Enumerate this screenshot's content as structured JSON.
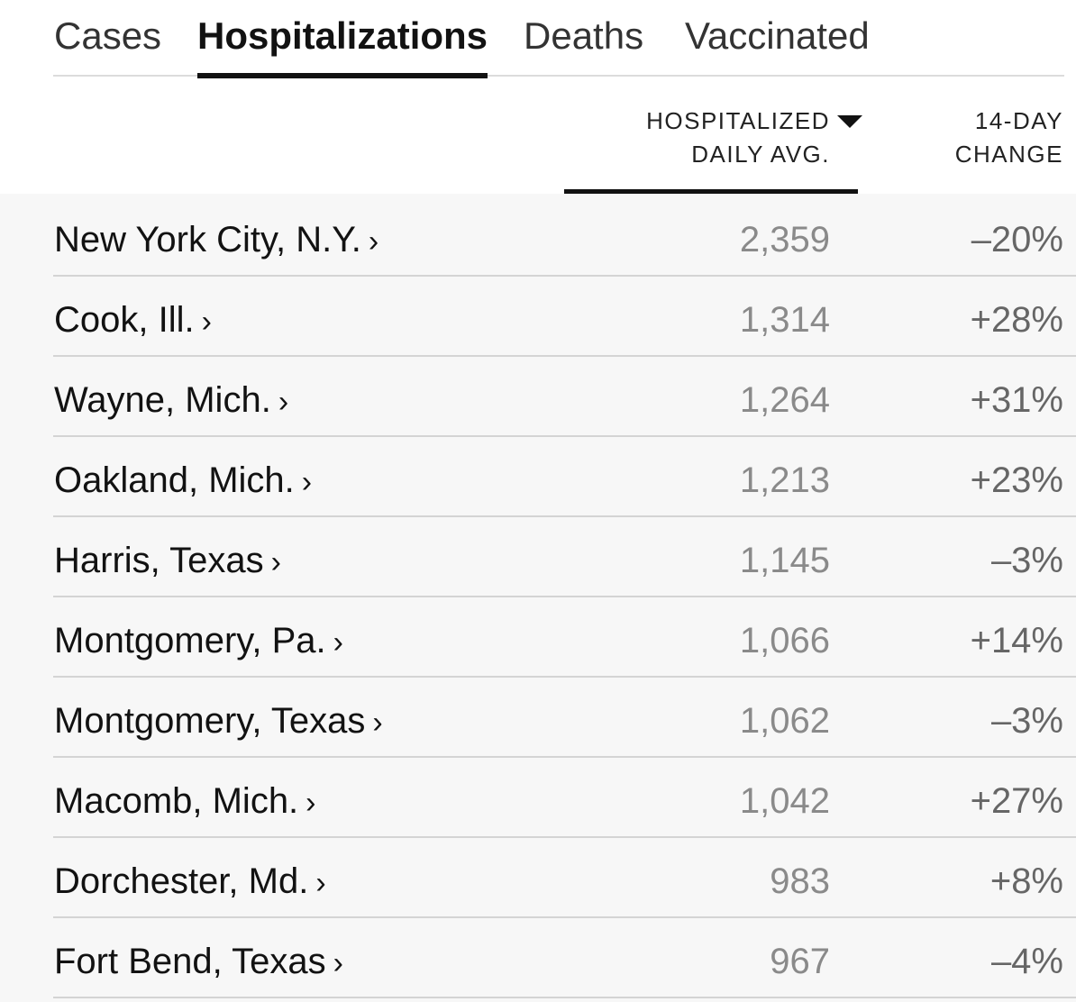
{
  "tabs": [
    {
      "label": "Cases"
    },
    {
      "label": "Hospitalizations"
    },
    {
      "label": "Deaths"
    },
    {
      "label": "Vaccinated"
    }
  ],
  "active_tab": "Hospitalizations",
  "columns": {
    "hospitalized": {
      "line1": "HOSPITALIZED",
      "line2": "DAILY AVG."
    },
    "change": {
      "line1": "14-DAY",
      "line2": "CHANGE"
    }
  },
  "sort": {
    "column": "hospitalized",
    "direction": "descending",
    "icon": "sort-down-triangle-icon"
  },
  "rows": [
    {
      "name": "New York City, N.Y.",
      "chevron": "›",
      "hospitalized": "2,359",
      "change": "–20%"
    },
    {
      "name": "Cook, Ill.",
      "chevron": "›",
      "hospitalized": "1,314",
      "change": "+28%"
    },
    {
      "name": "Wayne, Mich.",
      "chevron": "›",
      "hospitalized": "1,264",
      "change": "+31%"
    },
    {
      "name": "Oakland, Mich.",
      "chevron": "›",
      "hospitalized": "1,213",
      "change": "+23%"
    },
    {
      "name": "Harris, Texas",
      "chevron": "›",
      "hospitalized": "1,145",
      "change": "–3%"
    },
    {
      "name": "Montgomery, Pa.",
      "chevron": "›",
      "hospitalized": "1,066",
      "change": "+14%"
    },
    {
      "name": "Montgomery, Texas",
      "chevron": "›",
      "hospitalized": "1,062",
      "change": "–3%"
    },
    {
      "name": "Macomb, Mich.",
      "chevron": "›",
      "hospitalized": "1,042",
      "change": "+27%"
    },
    {
      "name": "Dorchester, Md.",
      "chevron": "›",
      "hospitalized": "983",
      "change": "+8%"
    },
    {
      "name": "Fort Bend, Texas",
      "chevron": "›",
      "hospitalized": "967",
      "change": "–4%"
    }
  ],
  "colors": {
    "text": "#121212",
    "muted_value": "#8a8a8a",
    "table_bg": "#f7f7f7",
    "divider": "#d4d4d4"
  }
}
